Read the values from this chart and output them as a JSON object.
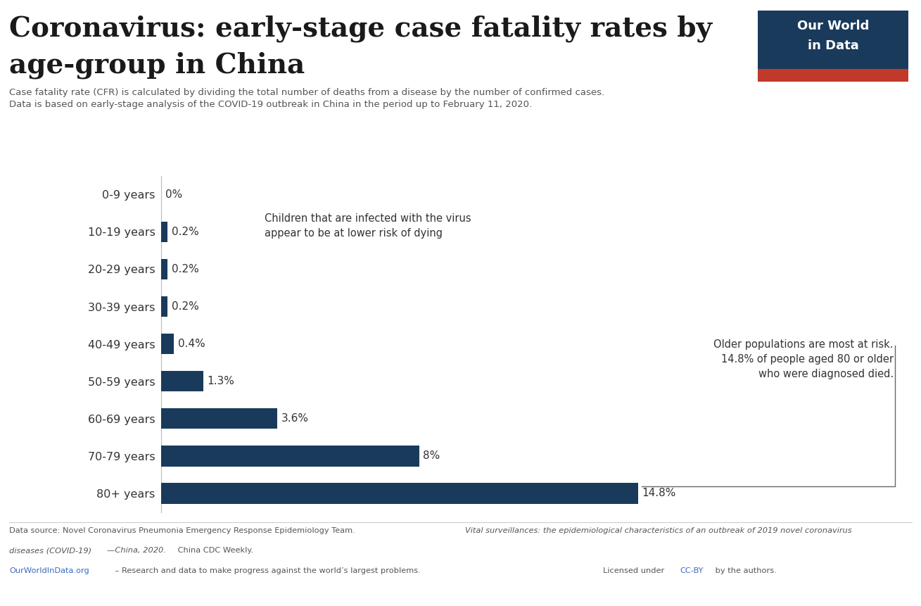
{
  "title_line1": "Coronavirus: early-stage case fatality rates by",
  "title_line2": "age-group in China",
  "subtitle": "Case fatality rate (CFR) is calculated by dividing the total number of deaths from a disease by the number of confirmed cases.\nData is based on early-stage analysis of the COVID-19 outbreak in China in the period up to February 11, 2020.",
  "categories": [
    "0-9 years",
    "10-19 years",
    "20-29 years",
    "30-39 years",
    "40-49 years",
    "50-59 years",
    "60-69 years",
    "70-79 years",
    "80+ years"
  ],
  "values": [
    0.0,
    0.2,
    0.2,
    0.2,
    0.4,
    1.3,
    3.6,
    8.0,
    14.8
  ],
  "value_labels": [
    "0%",
    "0.2%",
    "0.2%",
    "0.2%",
    "0.4%",
    "1.3%",
    "3.6%",
    "8%",
    "14.8%"
  ],
  "bar_color": "#1a3a5c",
  "background_color": "#ffffff",
  "annotation1_text": "Children that are infected with the virus\nappear to be at lower risk of dying",
  "annotation2_text": "Older populations are most at risk.\n14.8% of people aged 80 or older\nwho were diagnosed died.",
  "owid_bg_color": "#1a3a5c",
  "owid_red_color": "#c0392b",
  "owid_text_color": "#ffffff"
}
